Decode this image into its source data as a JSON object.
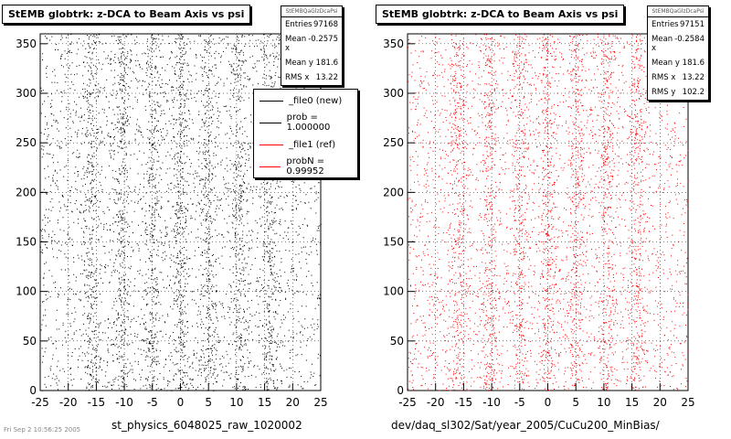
{
  "chart_data": [
    {
      "type": "scatter",
      "title": "StEMB globtrk: z-DCA to Beam Axis vs psi",
      "xlabel": "st_physics_6048025_raw_1020002",
      "ylabel": "",
      "xlim": [
        -25,
        25
      ],
      "ylim": [
        0,
        360
      ],
      "xticks": [
        -25,
        -20,
        -15,
        -10,
        -5,
        0,
        5,
        10,
        15,
        20,
        25
      ],
      "yticks": [
        0,
        50,
        100,
        150,
        200,
        250,
        300,
        350
      ],
      "grid": true,
      "point_color": "#000000",
      "entries": 97168,
      "stats": {
        "name": "StEMBQaGlzDcaPsi",
        "rows": [
          {
            "label": "Entries",
            "value": "97168"
          },
          {
            "label": "Mean x",
            "value": "-0.2575"
          },
          {
            "label": "Mean y",
            "value": "181.6"
          },
          {
            "label": "RMS x",
            "value": "13.22"
          }
        ]
      },
      "legend": {
        "placement": "top-right",
        "entries": [
          {
            "label": "_file0 (new)",
            "color": "#000000"
          },
          {
            "label": "prob = 1.000000",
            "color": "#000000"
          },
          {
            "label": "_file1 (ref)",
            "color": "#ff0000"
          },
          {
            "label": "probN = 0.99952",
            "color": "#ff0000"
          }
        ]
      }
    },
    {
      "type": "scatter",
      "title": "StEMB globtrk: z-DCA to Beam Axis vs psi",
      "xlabel": "dev/daq_sl302/Sat/year_2005/CuCu200_MinBias/",
      "ylabel": "",
      "xlim": [
        -25,
        25
      ],
      "ylim": [
        0,
        360
      ],
      "xticks": [
        -25,
        -20,
        -15,
        -10,
        -5,
        0,
        5,
        10,
        15,
        20,
        25
      ],
      "yticks": [
        0,
        50,
        100,
        150,
        200,
        250,
        300,
        350
      ],
      "grid": true,
      "point_color": "#ff0000",
      "entries": 97151,
      "stats": {
        "name": "StEMBQaGlzDcaPsi",
        "rows": [
          {
            "label": "Entries",
            "value": "97151"
          },
          {
            "label": "Mean x",
            "value": "-0.2584"
          },
          {
            "label": "Mean y",
            "value": "181.6"
          },
          {
            "label": "RMS x",
            "value": "13.22"
          },
          {
            "label": "RMS y",
            "value": "102.2"
          }
        ]
      }
    }
  ],
  "footer": "Fri Sep 2 10:56:25 2005"
}
